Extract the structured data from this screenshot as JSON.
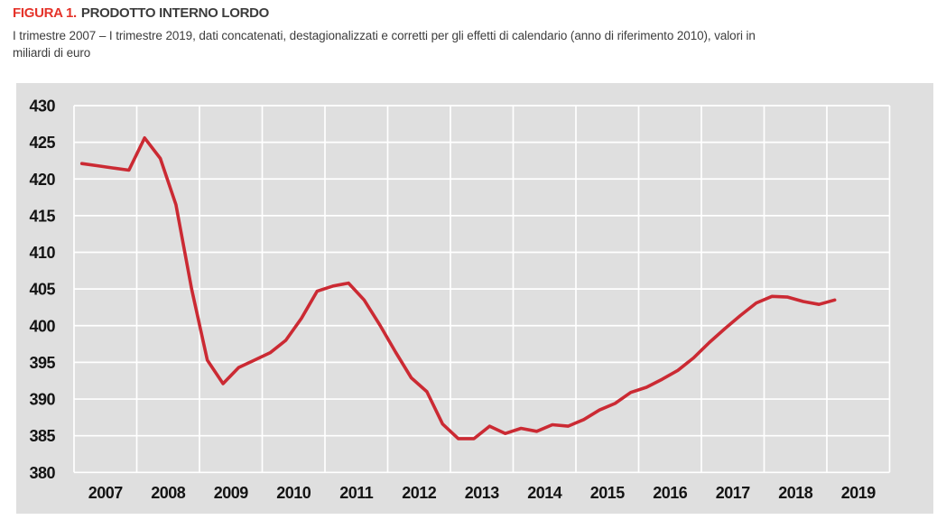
{
  "figure": {
    "label": "FIGURA 1.",
    "title": "PRODOTTO INTERNO LORDO",
    "subtitle_line1": "I trimestre 2007 – I trimestre 2019, dati concatenati, destagionalizzati e corretti per gli effetti di calendario (anno di riferimento 2010), valori in",
    "subtitle_line2": "miliardi di euro"
  },
  "colors": {
    "figure_label_red": "#e5332a",
    "title_text": "#3c3c3c",
    "line_red": "#cb2a33",
    "plot_background": "#dfdfdf",
    "gridline": "#ffffff",
    "axis_label": "#141414"
  },
  "chart_data": {
    "type": "line",
    "title": "PRODOTTO INTERNO LORDO",
    "x_unit": "quarter",
    "x_start": "2007-Q1",
    "x_end": "2019-Q1",
    "x_frequency": "quarterly",
    "year_labels": [
      "2007",
      "2008",
      "2009",
      "2010",
      "2011",
      "2012",
      "2013",
      "2014",
      "2015",
      "2016",
      "2017",
      "2018",
      "2019"
    ],
    "y_ticks": [
      430,
      425,
      420,
      415,
      410,
      405,
      400,
      395,
      390,
      385,
      380
    ],
    "ylim": [
      380,
      430
    ],
    "ylabel": "miliardi di euro",
    "grid": "white gridlines on gray plot, vertical lines at year boundaries",
    "legend": "none",
    "series": [
      {
        "name": "PIL (dati concatenati, destagionalizzati e corretti per gli effetti di calendario)",
        "color": "#cb2a33",
        "values": [
          422.1,
          421.8,
          421.5,
          421.2,
          425.6,
          422.8,
          416.5,
          405.0,
          395.3,
          392.1,
          394.3,
          395.3,
          396.3,
          398.0,
          401.0,
          404.7,
          405.4,
          405.8,
          403.5,
          400.1,
          396.4,
          392.9,
          391.0,
          386.6,
          384.6,
          384.6,
          386.3,
          385.3,
          386.0,
          385.6,
          386.5,
          386.3,
          387.2,
          388.5,
          389.4,
          390.9,
          391.6,
          392.7,
          393.9,
          395.6,
          397.7,
          399.6,
          401.4,
          403.1,
          404.0,
          403.9,
          403.3,
          402.9,
          403.5
        ]
      }
    ]
  }
}
